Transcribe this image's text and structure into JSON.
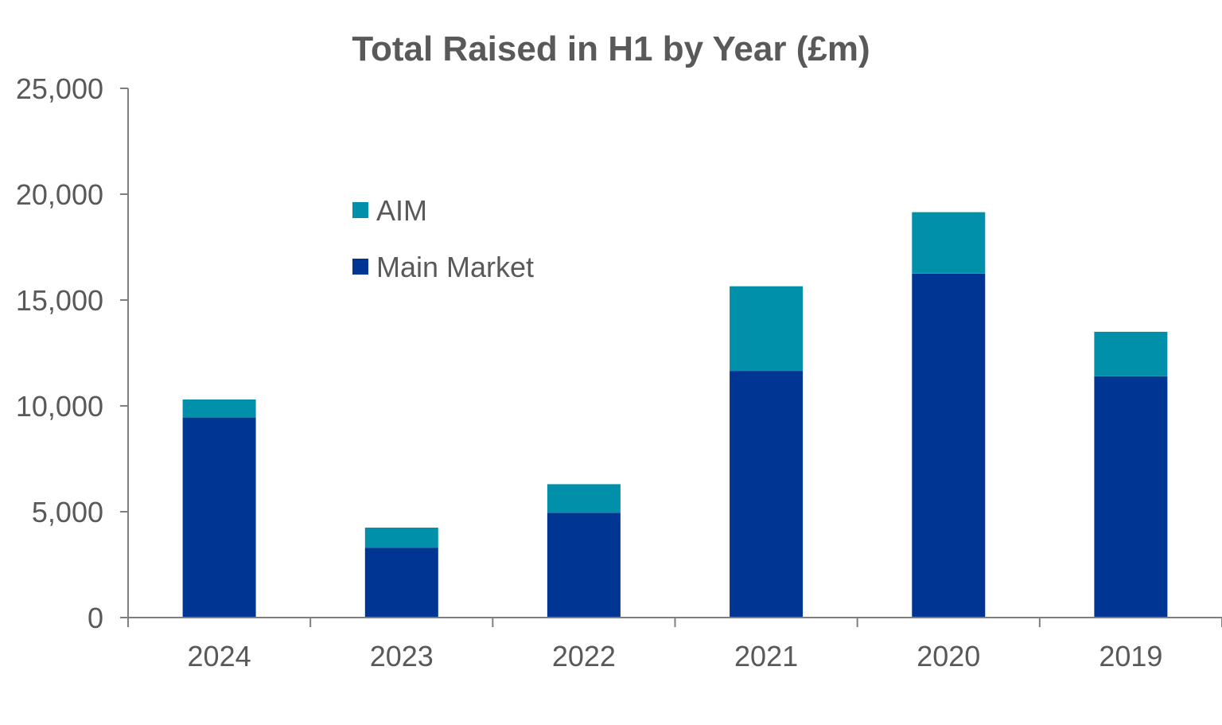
{
  "chart_data": {
    "type": "bar",
    "stacked": true,
    "title": "Total Raised in H1 by Year (£m)",
    "xlabel": "",
    "ylabel": "",
    "categories": [
      "2024",
      "2023",
      "2022",
      "2021",
      "2020",
      "2019"
    ],
    "ylim": [
      0,
      25000
    ],
    "yticks": [
      0,
      5000,
      10000,
      15000,
      20000,
      25000
    ],
    "ytick_labels": [
      "0",
      "5,000",
      "10,000",
      "15,000",
      "20,000",
      "25,000"
    ],
    "grid": false,
    "legend_position": "upper-left inside plot",
    "series": [
      {
        "name": "Main Market",
        "color": "#003594",
        "values": [
          9450,
          3300,
          4950,
          11650,
          16250,
          11400
        ]
      },
      {
        "name": "AIM",
        "color": "#0090AA",
        "values": [
          850,
          950,
          1350,
          4000,
          2900,
          2100
        ]
      }
    ],
    "legend_order": [
      "AIM",
      "Main Market"
    ]
  }
}
